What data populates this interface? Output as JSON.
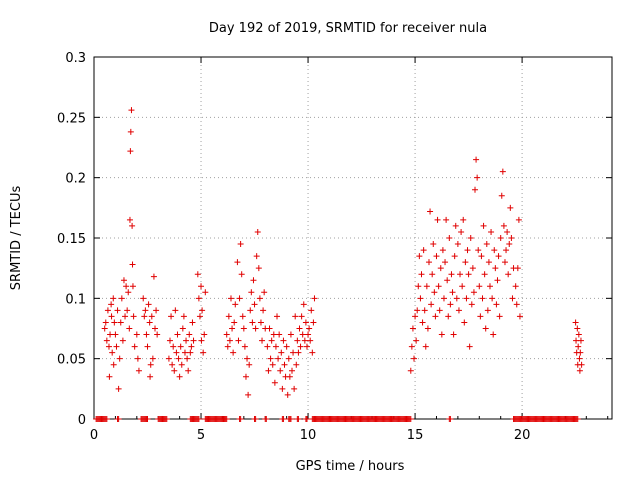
{
  "chart_data": {
    "type": "scatter",
    "title": "Day 192 of 2019, SRMTID for receiver nula",
    "xlabel": "GPS time / hours",
    "ylabel": "SRMTID / TECUs",
    "xlim": [
      0,
      24.2
    ],
    "ylim": [
      0,
      0.3
    ],
    "xticks": [
      0,
      5,
      10,
      15,
      20
    ],
    "xtick_labels": [
      "0",
      "5",
      "10",
      "15",
      "20"
    ],
    "yticks": [
      0,
      0.05,
      0.1,
      0.15,
      0.2,
      0.25,
      0.3
    ],
    "ytick_labels": [
      "0",
      "0.05",
      "0.1",
      "0.15",
      "0.2",
      "0.25",
      "0.3"
    ],
    "grid": true,
    "marker": "+",
    "color": "#e00000",
    "series": [
      {
        "name": "SRMTID",
        "points": [
          [
            0.5,
            0.075
          ],
          [
            0.55,
            0.08
          ],
          [
            0.6,
            0.065
          ],
          [
            0.65,
            0.09
          ],
          [
            0.7,
            0.06
          ],
          [
            0.72,
            0.035
          ],
          [
            0.75,
            0.07
          ],
          [
            0.8,
            0.095
          ],
          [
            0.82,
            0.085
          ],
          [
            0.85,
            0.055
          ],
          [
            0.9,
            0.1
          ],
          [
            0.92,
            0.045
          ],
          [
            0.95,
            0.08
          ],
          [
            1.0,
            0.07
          ],
          [
            1.05,
            0.06
          ],
          [
            1.1,
            0.09
          ],
          [
            1.15,
            0.025
          ],
          [
            1.2,
            0.05
          ],
          [
            1.25,
            0.08
          ],
          [
            1.3,
            0.1
          ],
          [
            1.35,
            0.065
          ],
          [
            1.4,
            0.115
          ],
          [
            1.45,
            0.085
          ],
          [
            1.5,
            0.11
          ],
          [
            1.55,
            0.09
          ],
          [
            1.6,
            0.105
          ],
          [
            1.65,
            0.075
          ],
          [
            1.68,
            0.165
          ],
          [
            1.7,
            0.222
          ],
          [
            1.72,
            0.238
          ],
          [
            1.75,
            0.256
          ],
          [
            1.78,
            0.16
          ],
          [
            1.8,
            0.128
          ],
          [
            1.82,
            0.11
          ],
          [
            1.85,
            0.085
          ],
          [
            1.9,
            0.06
          ],
          [
            2.0,
            0.07
          ],
          [
            2.05,
            0.05
          ],
          [
            2.1,
            0.04
          ],
          [
            2.3,
            0.1
          ],
          [
            2.35,
            0.085
          ],
          [
            2.4,
            0.09
          ],
          [
            2.45,
            0.07
          ],
          [
            2.5,
            0.06
          ],
          [
            2.55,
            0.095
          ],
          [
            2.6,
            0.08
          ],
          [
            2.62,
            0.035
          ],
          [
            2.65,
            0.045
          ],
          [
            2.7,
            0.085
          ],
          [
            2.75,
            0.05
          ],
          [
            2.8,
            0.118
          ],
          [
            2.85,
            0.075
          ],
          [
            2.9,
            0.09
          ],
          [
            2.95,
            0.07
          ],
          [
            3.5,
            0.05
          ],
          [
            3.55,
            0.065
          ],
          [
            3.6,
            0.085
          ],
          [
            3.65,
            0.045
          ],
          [
            3.7,
            0.06
          ],
          [
            3.75,
            0.04
          ],
          [
            3.8,
            0.09
          ],
          [
            3.85,
            0.055
          ],
          [
            3.9,
            0.07
          ],
          [
            3.95,
            0.05
          ],
          [
            4.0,
            0.035
          ],
          [
            4.05,
            0.06
          ],
          [
            4.1,
            0.045
          ],
          [
            4.15,
            0.075
          ],
          [
            4.2,
            0.085
          ],
          [
            4.25,
            0.055
          ],
          [
            4.3,
            0.065
          ],
          [
            4.35,
            0.05
          ],
          [
            4.4,
            0.04
          ],
          [
            4.45,
            0.07
          ],
          [
            4.5,
            0.055
          ],
          [
            4.55,
            0.06
          ],
          [
            4.6,
            0.08
          ],
          [
            4.65,
            0.065
          ],
          [
            4.85,
            0.12
          ],
          [
            4.9,
            0.1
          ],
          [
            4.95,
            0.085
          ],
          [
            5.0,
            0.11
          ],
          [
            5.02,
            0.065
          ],
          [
            5.05,
            0.09
          ],
          [
            5.1,
            0.055
          ],
          [
            5.15,
            0.07
          ],
          [
            5.2,
            0.105
          ],
          [
            6.2,
            0.07
          ],
          [
            6.25,
            0.06
          ],
          [
            6.3,
            0.085
          ],
          [
            6.35,
            0.065
          ],
          [
            6.4,
            0.1
          ],
          [
            6.45,
            0.075
          ],
          [
            6.5,
            0.055
          ],
          [
            6.55,
            0.08
          ],
          [
            6.6,
            0.095
          ],
          [
            6.7,
            0.13
          ],
          [
            6.75,
            0.065
          ],
          [
            6.8,
            0.1
          ],
          [
            6.85,
            0.145
          ],
          [
            6.9,
            0.12
          ],
          [
            6.95,
            0.085
          ],
          [
            7.0,
            0.075
          ],
          [
            7.05,
            0.06
          ],
          [
            7.1,
            0.035
          ],
          [
            7.15,
            0.05
          ],
          [
            7.2,
            0.02
          ],
          [
            7.25,
            0.045
          ],
          [
            7.3,
            0.09
          ],
          [
            7.35,
            0.105
          ],
          [
            7.4,
            0.08
          ],
          [
            7.45,
            0.115
          ],
          [
            7.5,
            0.095
          ],
          [
            7.55,
            0.075
          ],
          [
            7.6,
            0.135
          ],
          [
            7.65,
            0.155
          ],
          [
            7.7,
            0.125
          ],
          [
            7.75,
            0.1
          ],
          [
            7.8,
            0.08
          ],
          [
            7.85,
            0.065
          ],
          [
            7.9,
            0.09
          ],
          [
            7.95,
            0.105
          ],
          [
            8.0,
            0.075
          ],
          [
            8.1,
            0.06
          ],
          [
            8.15,
            0.04
          ],
          [
            8.2,
            0.075
          ],
          [
            8.25,
            0.05
          ],
          [
            8.3,
            0.065
          ],
          [
            8.35,
            0.045
          ],
          [
            8.4,
            0.07
          ],
          [
            8.45,
            0.03
          ],
          [
            8.5,
            0.06
          ],
          [
            8.55,
            0.085
          ],
          [
            8.6,
            0.05
          ],
          [
            8.65,
            0.07
          ],
          [
            8.7,
            0.04
          ],
          [
            8.75,
            0.055
          ],
          [
            8.8,
            0.025
          ],
          [
            8.85,
            0.065
          ],
          [
            8.9,
            0.045
          ],
          [
            8.95,
            0.035
          ],
          [
            9.0,
            0.06
          ],
          [
            9.05,
            0.02
          ],
          [
            9.1,
            0.05
          ],
          [
            9.15,
            0.035
          ],
          [
            9.2,
            0.07
          ],
          [
            9.25,
            0.04
          ],
          [
            9.3,
            0.055
          ],
          [
            9.35,
            0.025
          ],
          [
            9.4,
            0.085
          ],
          [
            9.45,
            0.045
          ],
          [
            9.5,
            0.065
          ],
          [
            9.55,
            0.055
          ],
          [
            9.6,
            0.075
          ],
          [
            9.65,
            0.06
          ],
          [
            9.7,
            0.085
          ],
          [
            9.75,
            0.07
          ],
          [
            9.8,
            0.095
          ],
          [
            9.85,
            0.065
          ],
          [
            9.9,
            0.08
          ],
          [
            9.95,
            0.06
          ],
          [
            10.0,
            0.07
          ],
          [
            10.05,
            0.075
          ],
          [
            10.1,
            0.065
          ],
          [
            10.15,
            0.09
          ],
          [
            10.2,
            0.055
          ],
          [
            10.25,
            0.08
          ],
          [
            10.3,
            0.1
          ],
          [
            14.8,
            0.04
          ],
          [
            14.85,
            0.06
          ],
          [
            14.9,
            0.075
          ],
          [
            14.95,
            0.05
          ],
          [
            15.0,
            0.085
          ],
          [
            15.05,
            0.065
          ],
          [
            15.1,
            0.09
          ],
          [
            15.15,
            0.11
          ],
          [
            15.2,
            0.135
          ],
          [
            15.25,
            0.1
          ],
          [
            15.3,
            0.12
          ],
          [
            15.35,
            0.08
          ],
          [
            15.4,
            0.14
          ],
          [
            15.45,
            0.09
          ],
          [
            15.5,
            0.06
          ],
          [
            15.55,
            0.11
          ],
          [
            15.6,
            0.075
          ],
          [
            15.65,
            0.13
          ],
          [
            15.7,
            0.172
          ],
          [
            15.75,
            0.095
          ],
          [
            15.8,
            0.12
          ],
          [
            15.85,
            0.145
          ],
          [
            15.9,
            0.105
          ],
          [
            15.95,
            0.085
          ],
          [
            16.0,
            0.135
          ],
          [
            16.05,
            0.165
          ],
          [
            16.1,
            0.11
          ],
          [
            16.15,
            0.09
          ],
          [
            16.2,
            0.125
          ],
          [
            16.25,
            0.07
          ],
          [
            16.3,
            0.14
          ],
          [
            16.35,
            0.1
          ],
          [
            16.4,
            0.13
          ],
          [
            16.45,
            0.165
          ],
          [
            16.5,
            0.115
          ],
          [
            16.55,
            0.085
          ],
          [
            16.6,
            0.15
          ],
          [
            16.65,
            0.095
          ],
          [
            16.7,
            0.12
          ],
          [
            16.75,
            0.105
          ],
          [
            16.8,
            0.07
          ],
          [
            16.85,
            0.135
          ],
          [
            16.9,
            0.16
          ],
          [
            16.95,
            0.1
          ],
          [
            17.0,
            0.145
          ],
          [
            17.05,
            0.09
          ],
          [
            17.1,
            0.12
          ],
          [
            17.15,
            0.155
          ],
          [
            17.2,
            0.11
          ],
          [
            17.25,
            0.165
          ],
          [
            17.3,
            0.08
          ],
          [
            17.35,
            0.13
          ],
          [
            17.4,
            0.1
          ],
          [
            17.45,
            0.14
          ],
          [
            17.5,
            0.12
          ],
          [
            17.55,
            0.06
          ],
          [
            17.6,
            0.15
          ],
          [
            17.65,
            0.095
          ],
          [
            17.7,
            0.125
          ],
          [
            17.75,
            0.105
          ],
          [
            17.8,
            0.19
          ],
          [
            17.85,
            0.215
          ],
          [
            17.9,
            0.2
          ],
          [
            17.95,
            0.14
          ],
          [
            18.0,
            0.11
          ],
          [
            18.05,
            0.085
          ],
          [
            18.1,
            0.135
          ],
          [
            18.15,
            0.1
          ],
          [
            18.2,
            0.16
          ],
          [
            18.25,
            0.12
          ],
          [
            18.3,
            0.075
          ],
          [
            18.35,
            0.145
          ],
          [
            18.4,
            0.09
          ],
          [
            18.45,
            0.13
          ],
          [
            18.5,
            0.11
          ],
          [
            18.55,
            0.155
          ],
          [
            18.6,
            0.1
          ],
          [
            18.65,
            0.07
          ],
          [
            18.7,
            0.14
          ],
          [
            18.75,
            0.125
          ],
          [
            18.8,
            0.095
          ],
          [
            18.85,
            0.115
          ],
          [
            18.9,
            0.135
          ],
          [
            18.95,
            0.085
          ],
          [
            19.0,
            0.15
          ],
          [
            19.05,
            0.185
          ],
          [
            19.1,
            0.205
          ],
          [
            19.15,
            0.16
          ],
          [
            19.2,
            0.13
          ],
          [
            19.25,
            0.14
          ],
          [
            19.3,
            0.155
          ],
          [
            19.35,
            0.12
          ],
          [
            19.4,
            0.145
          ],
          [
            19.45,
            0.175
          ],
          [
            19.5,
            0.15
          ],
          [
            19.55,
            0.1
          ],
          [
            19.6,
            0.125
          ],
          [
            19.7,
            0.11
          ],
          [
            19.75,
            0.095
          ],
          [
            19.8,
            0.125
          ],
          [
            19.85,
            0.165
          ],
          [
            19.9,
            0.085
          ],
          [
            22.5,
            0.08
          ],
          [
            22.52,
            0.065
          ],
          [
            22.55,
            0.055
          ],
          [
            22.58,
            0.075
          ],
          [
            22.6,
            0.045
          ],
          [
            22.62,
            0.06
          ],
          [
            22.65,
            0.07
          ],
          [
            22.68,
            0.05
          ],
          [
            22.7,
            0.04
          ],
          [
            22.72,
            0.055
          ],
          [
            22.75,
            0.065
          ],
          [
            22.78,
            0.045
          ]
        ]
      },
      {
        "name": "zero-baseline",
        "ranges": [
          [
            0.1,
            0.6
          ],
          [
            1.1,
            1.15
          ],
          [
            2.2,
            2.5
          ],
          [
            3.0,
            3.4
          ],
          [
            4.5,
            4.9
          ],
          [
            5.2,
            6.2
          ],
          [
            6.8,
            6.85
          ],
          [
            7.5,
            7.55
          ],
          [
            8.0,
            8.05
          ],
          [
            8.8,
            8.85
          ],
          [
            9.1,
            9.2
          ],
          [
            9.5,
            9.55
          ],
          [
            9.9,
            9.95
          ],
          [
            10.2,
            14.8
          ],
          [
            16.6,
            16.65
          ],
          [
            19.6,
            22.6
          ]
        ],
        "value": 0
      }
    ]
  }
}
